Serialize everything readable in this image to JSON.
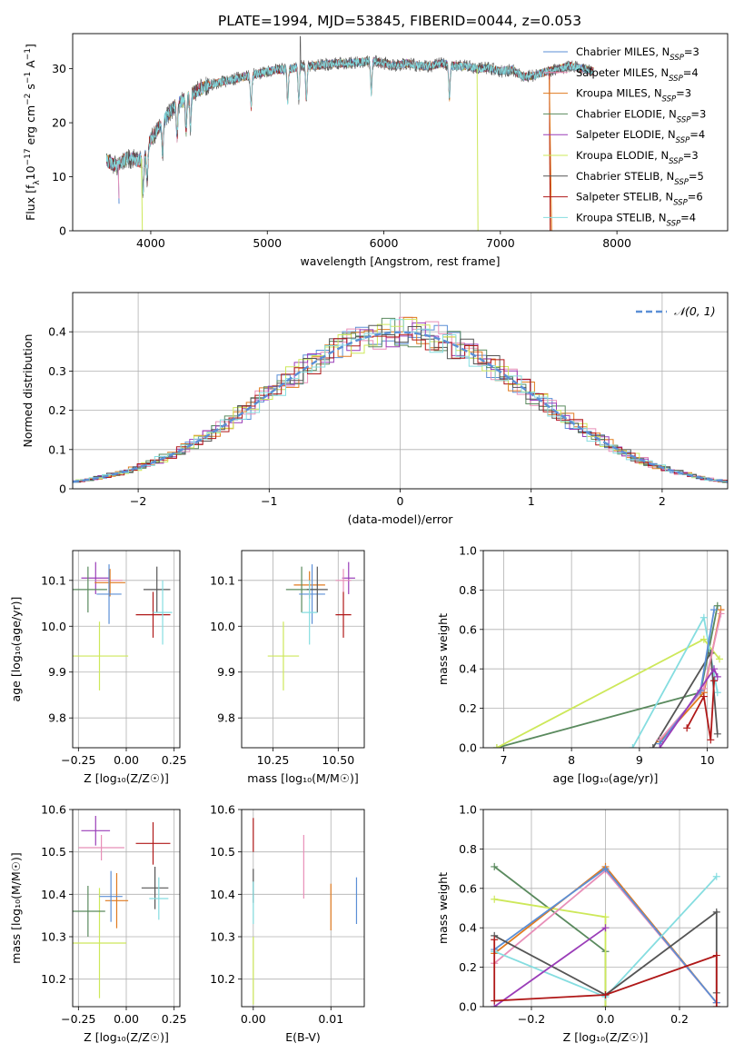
{
  "figure_title": "PLATE=1994, MJD=53845, FIBERID=0044, z=0.053",
  "colors": {
    "chabrier_miles": "#5b8fd6",
    "salpeter_miles": "#e88fb8",
    "kroupa_miles": "#e07a1f",
    "chabrier_elodie": "#5a8a5e",
    "salpeter_elodie": "#9a3db8",
    "kroupa_elodie": "#cde85a",
    "chabrier_stelib": "#555555",
    "salpeter_stelib": "#b01818",
    "kroupa_stelib": "#85dde0",
    "normal_curve": "#5b8fd6",
    "grid": "#b0b0b0"
  },
  "chart_data": [
    {
      "id": "spectrum",
      "type": "line",
      "xlabel": "wavelength [Angstrom, rest frame]",
      "ylabel": "Flux [f_λ 10^-17 erg cm^-2 s^-1 A^-1]",
      "xlim": [
        3330,
        8950
      ],
      "ylim": [
        0,
        36.5
      ],
      "xticks": [
        4000,
        5000,
        6000,
        7000,
        8000
      ],
      "yticks": [
        0,
        10,
        20,
        30
      ],
      "grid": false,
      "legend_position": "upper right",
      "continuum": {
        "x": [
          3620,
          3700,
          3800,
          3900,
          3950,
          4000,
          4100,
          4200,
          4300,
          4400,
          4500,
          4600,
          4700,
          4800,
          4900,
          5000,
          5100,
          5200,
          5300,
          5400,
          5500,
          5600,
          5700,
          5800,
          5900,
          6000,
          6100,
          6200,
          6300,
          6400,
          6500,
          6600,
          6700,
          6800,
          6900,
          7000,
          7100,
          7200,
          7300,
          7400,
          7500,
          7600,
          7700,
          7800
        ],
        "y": [
          13,
          12,
          13.5,
          13,
          14,
          17,
          20,
          23,
          24.5,
          26,
          27,
          27.5,
          28,
          28.5,
          29,
          29.5,
          29.8,
          30,
          30.5,
          30.5,
          30.8,
          31,
          31,
          31.2,
          31.5,
          31,
          30.5,
          31,
          30.5,
          30.5,
          31,
          30.5,
          30.5,
          30,
          30.2,
          29.5,
          29.8,
          28.5,
          28.8,
          29.5,
          30,
          30.5,
          30,
          29.5
        ]
      },
      "absorption_lines": [
        3934,
        3969,
        4102,
        4226,
        4304,
        4341,
        4861,
        5175,
        5270,
        5335,
        5892,
        6563
      ],
      "dropouts": [
        {
          "name": "Chabrier MILES, N_SSP=3",
          "x": 3720,
          "y": 5
        },
        {
          "name": "Salpeter MILES, N_SSP=4",
          "x": 3720,
          "y": 6
        },
        {
          "name": "Kroupa ELODIE, N_SSP=3",
          "x": 3920,
          "y": 0
        },
        {
          "name": "Kroupa ELODIE, N_SSP=3",
          "x": 6800,
          "y": 0
        },
        {
          "name": "Kroupa MILES, N_SSP=3",
          "x": 7420,
          "y": 0
        },
        {
          "name": "Salpeter STELIB, N_SSP=6",
          "x": 7420,
          "y": 0
        }
      ],
      "legend": [
        {
          "label": "Chabrier MILES, N",
          "sub": "SSP",
          "tail": "=3",
          "color": "chabrier_miles"
        },
        {
          "label": "Salpeter MILES, N",
          "sub": "SSP",
          "tail": "=4",
          "color": "salpeter_miles"
        },
        {
          "label": "Kroupa MILES, N",
          "sub": "SSP",
          "tail": "=3",
          "color": "kroupa_miles"
        },
        {
          "label": "Chabrier ELODIE, N",
          "sub": "SSP",
          "tail": "=3",
          "color": "chabrier_elodie"
        },
        {
          "label": "Salpeter ELODIE, N",
          "sub": "SSP",
          "tail": "=4",
          "color": "salpeter_elodie"
        },
        {
          "label": "Kroupa ELODIE, N",
          "sub": "SSP",
          "tail": "=3",
          "color": "kroupa_elodie"
        },
        {
          "label": "Chabrier STELIB, N",
          "sub": "SSP",
          "tail": "=5",
          "color": "chabrier_stelib"
        },
        {
          "label": "Salpeter STELIB, N",
          "sub": "SSP",
          "tail": "=6",
          "color": "salpeter_stelib"
        },
        {
          "label": "Kroupa STELIB, N",
          "sub": "SSP",
          "tail": "=4",
          "color": "kroupa_stelib"
        }
      ]
    },
    {
      "id": "residuals",
      "type": "area",
      "xlabel": "(data-model)/error",
      "ylabel": "Normed distribution",
      "xlim": [
        -2.5,
        2.5
      ],
      "ylim": [
        0,
        0.5
      ],
      "xticks": [
        -2,
        -1,
        0,
        1,
        2
      ],
      "xtick_labels": [
        "−2",
        "−1",
        "0",
        "1",
        "2"
      ],
      "yticks": [
        0,
        0.1,
        0.2,
        0.3,
        0.4
      ],
      "grid": true,
      "bin_width": 0.1,
      "legend": "𝒩(0, 1)",
      "legend_position": "upper right"
    },
    {
      "id": "age_vs_Z",
      "type": "scatter",
      "xlabel": "Z [log₁₀(Z/Z☉)]",
      "ylabel": "age  [log₁₀(age/yr)]",
      "xlim": [
        -0.28,
        0.28
      ],
      "ylim": [
        9.735,
        10.165
      ],
      "xticks": [
        -0.25,
        0,
        0.25
      ],
      "xtick_labels": [
        "−0.25",
        "0.00",
        "0.25"
      ],
      "yticks": [
        9.8,
        9.9,
        10.0,
        10.1
      ],
      "yticks_labels": [
        "9.8",
        "9.9",
        "10.0",
        "10.1"
      ],
      "grid": true,
      "points": [
        {
          "series": "kroupa_elodie",
          "x": -0.14,
          "y": 9.935,
          "xerr": 0.15,
          "yerr": 0.075
        },
        {
          "series": "salpeter_elodie",
          "x": -0.16,
          "y": 10.105,
          "xerr": 0.075,
          "yerr": 0.035
        },
        {
          "series": "salpeter_miles",
          "x": -0.09,
          "y": 10.1,
          "xerr": 0.07,
          "yerr": 0.025
        },
        {
          "series": "kroupa_miles",
          "x": -0.085,
          "y": 10.095,
          "xerr": 0.08,
          "yerr": 0.03
        },
        {
          "series": "chabrier_elodie",
          "x": -0.2,
          "y": 10.08,
          "xerr": 0.1,
          "yerr": 0.05
        },
        {
          "series": "chabrier_miles",
          "x": -0.09,
          "y": 10.07,
          "xerr": 0.065,
          "yerr": 0.065
        },
        {
          "series": "chabrier_stelib",
          "x": 0.16,
          "y": 10.08,
          "xerr": 0.07,
          "yerr": 0.05
        },
        {
          "series": "salpeter_stelib",
          "x": 0.14,
          "y": 10.025,
          "xerr": 0.09,
          "yerr": 0.05
        },
        {
          "series": "kroupa_stelib",
          "x": 0.19,
          "y": 10.03,
          "xerr": 0.05,
          "yerr": 0.07
        }
      ]
    },
    {
      "id": "age_vs_mass",
      "type": "scatter",
      "xlabel": "mass [log₁₀(M/M☉)]",
      "ylabel": "",
      "xlim": [
        10.13,
        10.6
      ],
      "ylim": [
        9.735,
        10.165
      ],
      "xticks": [
        10.25,
        10.5
      ],
      "xtick_labels": [
        "10.25",
        "10.50"
      ],
      "yticks": [
        9.8,
        9.9,
        10.0,
        10.1
      ],
      "yticks_labels": [
        "9.8",
        "9.9",
        "10.0",
        "10.1"
      ],
      "grid": true,
      "points": [
        {
          "series": "kroupa_elodie",
          "x": 10.29,
          "y": 9.935,
          "xerr": 0.06,
          "yerr": 0.075
        },
        {
          "series": "salpeter_elodie",
          "x": 10.54,
          "y": 10.105,
          "xerr": 0.025,
          "yerr": 0.035
        },
        {
          "series": "salpeter_miles",
          "x": 10.52,
          "y": 10.1,
          "xerr": 0.03,
          "yerr": 0.025
        },
        {
          "series": "kroupa_miles",
          "x": 10.39,
          "y": 10.09,
          "xerr": 0.06,
          "yerr": 0.03
        },
        {
          "series": "chabrier_elodie",
          "x": 10.36,
          "y": 10.08,
          "xerr": 0.06,
          "yerr": 0.05
        },
        {
          "series": "chabrier_miles",
          "x": 10.4,
          "y": 10.07,
          "xerr": 0.05,
          "yerr": 0.065
        },
        {
          "series": "chabrier_stelib",
          "x": 10.42,
          "y": 10.08,
          "xerr": 0.04,
          "yerr": 0.05
        },
        {
          "series": "salpeter_stelib",
          "x": 10.52,
          "y": 10.025,
          "xerr": 0.03,
          "yerr": 0.05
        },
        {
          "series": "kroupa_stelib",
          "x": 10.39,
          "y": 10.03,
          "xerr": 0.03,
          "yerr": 0.07
        }
      ]
    },
    {
      "id": "weight_vs_age",
      "type": "line",
      "xlabel": "age  [log₁₀(age/yr)]",
      "ylabel": "mass weight",
      "xlim": [
        6.7,
        10.3
      ],
      "ylim": [
        0,
        1
      ],
      "xticks": [
        7,
        8,
        9,
        10
      ],
      "xtick_labels": [
        "7",
        "8",
        "9",
        "10"
      ],
      "yticks": [
        0,
        0.2,
        0.4,
        0.6,
        0.8,
        1.0
      ],
      "ytick_labels": [
        "0.0",
        "0.2",
        "0.4",
        "0.6",
        "0.8",
        "1.0"
      ],
      "grid": true,
      "series": [
        {
          "name": "chabrier_elodie",
          "x": [
            6.9,
            9.9,
            10.15
          ],
          "y": [
            0.0,
            0.28,
            0.72
          ]
        },
        {
          "name": "kroupa_elodie",
          "x": [
            6.9,
            9.95,
            10.18
          ],
          "y": [
            0.0,
            0.55,
            0.45
          ]
        },
        {
          "name": "kroupa_stelib",
          "x": [
            8.9,
            9.95,
            10.15
          ],
          "y": [
            0.0,
            0.66,
            0.28
          ]
        },
        {
          "name": "chabrier_stelib",
          "x": [
            9.2,
            10.05,
            10.15
          ],
          "y": [
            0.0,
            0.48,
            0.07
          ]
        },
        {
          "name": "kroupa_miles",
          "x": [
            9.3,
            9.95,
            10.2
          ],
          "y": [
            0.03,
            0.28,
            0.7
          ]
        },
        {
          "name": "salpeter_miles",
          "x": [
            9.3,
            9.95,
            10.2
          ],
          "y": [
            0.04,
            0.3,
            0.68
          ]
        },
        {
          "name": "chabrier_miles",
          "x": [
            9.3,
            9.9,
            10.1
          ],
          "y": [
            0.02,
            0.29,
            0.7
          ]
        },
        {
          "name": "salpeter_elodie",
          "x": [
            9.3,
            10.1,
            10.15
          ],
          "y": [
            0.0,
            0.4,
            0.36
          ]
        },
        {
          "name": "salpeter_stelib",
          "x": [
            9.7,
            9.95,
            10.05,
            10.1
          ],
          "y": [
            0.1,
            0.26,
            0.04,
            0.34
          ]
        }
      ]
    },
    {
      "id": "mass_vs_Z",
      "type": "scatter",
      "xlabel": "Z [log₁₀(Z/Z☉)]",
      "ylabel": "mass [log₁₀(M/M☉)]",
      "xlim": [
        -0.28,
        0.28
      ],
      "ylim": [
        10.135,
        10.6
      ],
      "xticks": [
        -0.25,
        0,
        0.25
      ],
      "xtick_labels": [
        "−0.25",
        "0.00",
        "0.25"
      ],
      "yticks": [
        10.2,
        10.3,
        10.4,
        10.5,
        10.6
      ],
      "yticks_labels": [
        "10.2",
        "10.3",
        "10.4",
        "10.5",
        "10.6"
      ],
      "grid": true,
      "points": [
        {
          "series": "kroupa_elodie",
          "x": -0.14,
          "y": 10.285,
          "xerr": 0.14,
          "yerr": 0.13
        },
        {
          "series": "salpeter_elodie",
          "x": -0.16,
          "y": 10.55,
          "xerr": 0.075,
          "yerr": 0.035
        },
        {
          "series": "salpeter_miles",
          "x": -0.13,
          "y": 10.51,
          "xerr": 0.12,
          "yerr": 0.03
        },
        {
          "series": "kroupa_miles",
          "x": -0.05,
          "y": 10.385,
          "xerr": 0.06,
          "yerr": 0.065
        },
        {
          "series": "chabrier_elodie",
          "x": -0.2,
          "y": 10.36,
          "xerr": 0.09,
          "yerr": 0.06
        },
        {
          "series": "chabrier_miles",
          "x": -0.08,
          "y": 10.395,
          "xerr": 0.06,
          "yerr": 0.06
        },
        {
          "series": "chabrier_stelib",
          "x": 0.15,
          "y": 10.415,
          "xerr": 0.07,
          "yerr": 0.05
        },
        {
          "series": "salpeter_stelib",
          "x": 0.14,
          "y": 10.52,
          "xerr": 0.09,
          "yerr": 0.05
        },
        {
          "series": "kroupa_stelib",
          "x": 0.17,
          "y": 10.39,
          "xerr": 0.05,
          "yerr": 0.05
        }
      ]
    },
    {
      "id": "mass_vs_ebv",
      "type": "scatter",
      "xlabel": "E(B-V)",
      "ylabel": "",
      "xlim": [
        -0.0015,
        0.0143
      ],
      "ylim": [
        10.135,
        10.6
      ],
      "xticks": [
        0,
        0.01
      ],
      "xtick_labels": [
        "0.00",
        "0.01"
      ],
      "yticks": [
        10.2,
        10.3,
        10.4,
        10.5,
        10.6
      ],
      "yticks_labels": [
        "10.2",
        "10.3",
        "10.4",
        "10.5",
        "10.6"
      ],
      "grid": true,
      "points": [
        {
          "series": "salpeter_stelib",
          "x": 0.0,
          "y": 10.54,
          "xerr": 0,
          "yerr": 0.04
        },
        {
          "series": "chabrier_stelib",
          "x": 0.0,
          "y": 10.42,
          "xerr": 0,
          "yerr": 0.04
        },
        {
          "series": "kroupa_stelib",
          "x": 0.0,
          "y": 10.38,
          "xerr": 0,
          "yerr": 0.05
        },
        {
          "series": "kroupa_elodie",
          "x": 0.0,
          "y": 10.22,
          "xerr": 0,
          "yerr": 0.08
        },
        {
          "series": "salpeter_miles",
          "x": 0.0065,
          "y": 10.465,
          "xerr": 0,
          "yerr": 0.075
        },
        {
          "series": "kroupa_miles",
          "x": 0.01,
          "y": 10.37,
          "xerr": 0,
          "yerr": 0.055
        },
        {
          "series": "chabrier_miles",
          "x": 0.0133,
          "y": 10.385,
          "xerr": 0,
          "yerr": 0.055
        }
      ]
    },
    {
      "id": "weight_vs_Z",
      "type": "line",
      "xlabel": "Z [log₁₀(Z/Z☉)]",
      "ylabel": "mass weight",
      "xlim": [
        -0.33,
        0.33
      ],
      "ylim": [
        0,
        1
      ],
      "xticks": [
        -0.2,
        0,
        0.2
      ],
      "xtick_labels": [
        "−0.2",
        "0.0",
        "0.2"
      ],
      "yticks": [
        0,
        0.2,
        0.4,
        0.6,
        0.8,
        1.0
      ],
      "ytick_labels": [
        "0.0",
        "0.2",
        "0.4",
        "0.6",
        "0.8",
        "1.0"
      ],
      "grid": true,
      "series": [
        {
          "name": "chabrier_elodie",
          "x": [
            -0.3,
            0.0,
            0.0
          ],
          "y": [
            0.71,
            0.28,
            0.0
          ]
        },
        {
          "name": "kroupa_elodie",
          "x": [
            -0.3,
            0.0,
            0.0
          ],
          "y": [
            0.545,
            0.455,
            0.0
          ]
        },
        {
          "name": "kroupa_miles",
          "x": [
            -0.3,
            0.0,
            0.3
          ],
          "y": [
            0.27,
            0.71,
            0.02
          ]
        },
        {
          "name": "salpeter_miles",
          "x": [
            -0.3,
            0.0,
            0.3
          ],
          "y": [
            0.22,
            0.69,
            0.02
          ]
        },
        {
          "name": "chabrier_miles",
          "x": [
            -0.3,
            0.0,
            0.3
          ],
          "y": [
            0.29,
            0.7,
            0.02
          ]
        },
        {
          "name": "kroupa_stelib",
          "x": [
            -0.3,
            0.0,
            0.3
          ],
          "y": [
            0.28,
            0.05,
            0.66
          ]
        },
        {
          "name": "chabrier_stelib",
          "x": [
            -0.3,
            0.0,
            0.3,
            0.3
          ],
          "y": [
            0.36,
            0.06,
            0.48,
            0.07
          ]
        },
        {
          "name": "salpeter_elodie",
          "x": [
            -0.3,
            0.0
          ],
          "y": [
            0.0,
            0.4
          ]
        },
        {
          "name": "salpeter_stelib",
          "x": [
            -0.3,
            -0.3,
            0.0,
            0.3,
            0.3
          ],
          "y": [
            0.34,
            0.03,
            0.06,
            0.26,
            0.0
          ]
        }
      ]
    }
  ]
}
